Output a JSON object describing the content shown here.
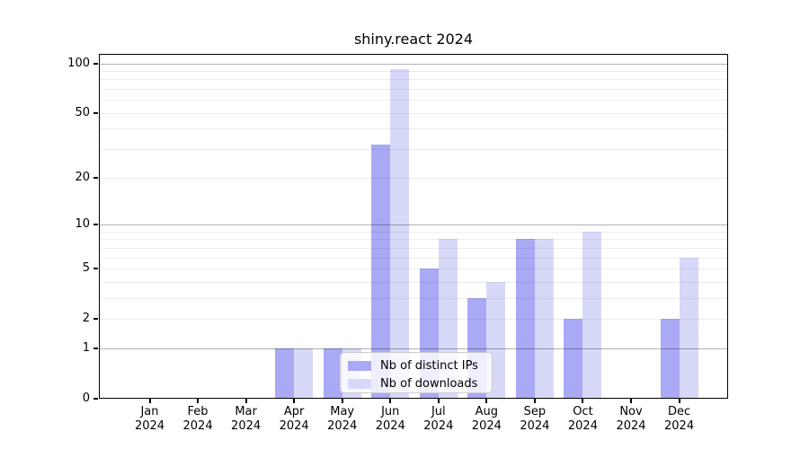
{
  "chart_data": {
    "type": "bar",
    "title": "shiny.react 2024",
    "x_categories": [
      "Jan",
      "Feb",
      "Mar",
      "Apr",
      "May",
      "Jun",
      "Jul",
      "Aug",
      "Sep",
      "Oct",
      "Nov",
      "Dec"
    ],
    "x_year": "2024",
    "y_scale": "log1p",
    "y_ticks": [
      0,
      1,
      2,
      5,
      10,
      20,
      50,
      100
    ],
    "y_top": 114,
    "grid": {
      "horizontal_minor_at": [
        2,
        3,
        4,
        5,
        6,
        7,
        8,
        9,
        20,
        30,
        40,
        50,
        60,
        70,
        80,
        90
      ],
      "horizontal_major_at": [
        1,
        10,
        100
      ]
    },
    "series": [
      {
        "key": "distinct-ips",
        "name": "Nb of distinct IPs",
        "color": "#a9a9f5",
        "values": [
          0,
          0,
          0,
          1,
          1,
          32,
          5,
          3,
          8,
          2,
          0,
          2
        ]
      },
      {
        "key": "downloads",
        "name": "Nb of downloads",
        "color": "#d8d8f9",
        "values": [
          0,
          0,
          0,
          1,
          1,
          92,
          8,
          4,
          8,
          9,
          0,
          6
        ]
      }
    ],
    "legend": {
      "position": "inside-bottom-center",
      "entries": [
        "Nb of distinct IPs",
        "Nb of downloads"
      ]
    }
  },
  "colors": {
    "background": "#ffffff",
    "axis": "#000000",
    "text": "#000000",
    "major_gridline": "rgba(0,0,0,0.30)",
    "minor_gridline": "rgba(0,0,0,0.07)",
    "legend_background": "rgba(255,255,255,0.80)",
    "legend_border": "#cccccc"
  }
}
